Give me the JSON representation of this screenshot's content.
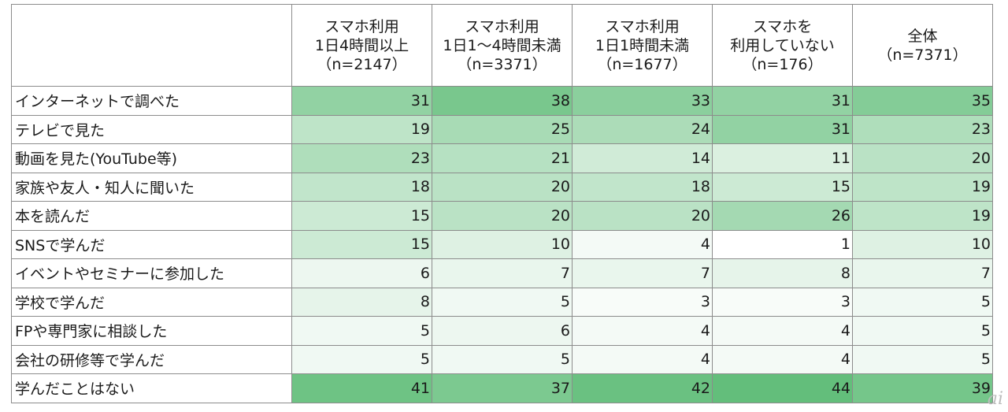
{
  "chart_data": {
    "type": "table",
    "columns": [
      [
        "スマホ利用",
        "1日4時間以上",
        "（n=2147）"
      ],
      [
        "スマホ利用",
        "1日1～4時間未満",
        "（n=3371）"
      ],
      [
        "スマホ利用",
        "1日1時間未満",
        "（n=1677）"
      ],
      [
        "スマホを",
        "利用していない",
        "（n=176）"
      ],
      [
        "全体",
        "（n=7371）"
      ]
    ],
    "rows": [
      "インターネットで調べた",
      "テレビで見た",
      "動画を見た(YouTube等)",
      "家族や友人・知人に聞いた",
      "本を読んだ",
      "SNSで学んだ",
      "イベントやセミナーに参加した",
      "学校で学んだ",
      "FPや専門家に相談した",
      "会社の研修等で学んだ",
      "学んだことはない"
    ],
    "values": [
      [
        31,
        38,
        33,
        31,
        35
      ],
      [
        19,
        25,
        24,
        31,
        23
      ],
      [
        23,
        21,
        14,
        11,
        20
      ],
      [
        18,
        20,
        18,
        15,
        19
      ],
      [
        15,
        20,
        20,
        26,
        19
      ],
      [
        15,
        10,
        4,
        1,
        10
      ],
      [
        6,
        7,
        7,
        8,
        7
      ],
      [
        8,
        5,
        3,
        3,
        5
      ],
      [
        5,
        6,
        4,
        4,
        5
      ],
      [
        5,
        5,
        4,
        4,
        5
      ],
      [
        41,
        37,
        42,
        44,
        39
      ]
    ],
    "color_scale": {
      "low": "#ffffff",
      "high": "#63be7b",
      "min": 1,
      "max": 44
    }
  },
  "watermark": "ai"
}
